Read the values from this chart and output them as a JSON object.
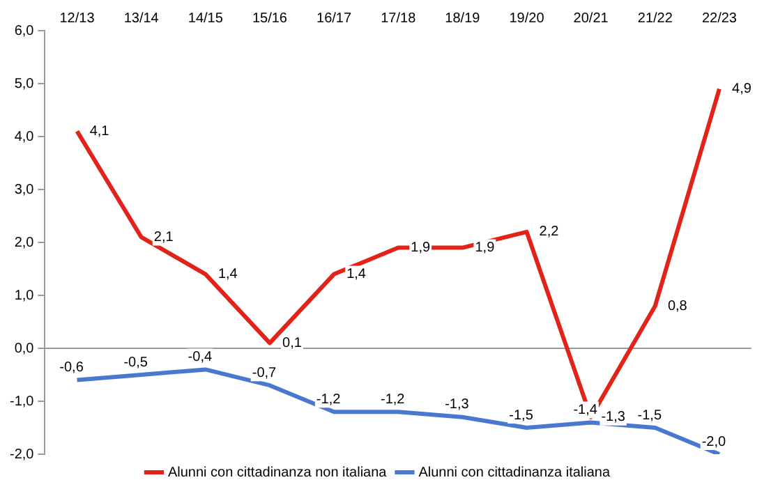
{
  "chart_data": {
    "type": "line",
    "categories": [
      "12/13",
      "13/14",
      "14/15",
      "15/16",
      "16/17",
      "17/18",
      "18/19",
      "19/20",
      "20/21",
      "21/22",
      "22/23"
    ],
    "ylim": [
      -2,
      6
    ],
    "yticks": [
      {
        "value": -2,
        "label": "-2,0"
      },
      {
        "value": -1,
        "label": "-1,0"
      },
      {
        "value": 0,
        "label": "0,0"
      },
      {
        "value": 1,
        "label": "1,0"
      },
      {
        "value": 2,
        "label": "2,0"
      },
      {
        "value": 3,
        "label": "3,0"
      },
      {
        "value": 4,
        "label": "4,0"
      },
      {
        "value": 5,
        "label": "5,0"
      },
      {
        "value": 6,
        "label": "6,0"
      }
    ],
    "grid": false,
    "ref_lines": [
      {
        "axis": "y",
        "value": 0,
        "color": "#999999"
      }
    ],
    "legend": "bottom",
    "marker": "none",
    "line_style": "solid",
    "series": [
      {
        "name": "Alunni con cittadinanza non italiana",
        "color": "#e2231a",
        "values": [
          4.1,
          2.1,
          1.4,
          0.1,
          1.4,
          1.9,
          1.9,
          2.2,
          -1.3,
          0.8,
          4.9
        ],
        "value_labels": [
          "4,1",
          "2,1",
          "1,4",
          "0,1",
          "1,4",
          "1,9",
          "1,9",
          "2,2",
          "-1,3",
          "0,8",
          "4,9"
        ]
      },
      {
        "name": "Alunni con cittadinanza italiana",
        "color": "#4a78d0",
        "values": [
          -0.6,
          -0.5,
          -0.4,
          -0.7,
          -1.2,
          -1.2,
          -1.3,
          -1.5,
          -1.4,
          -1.5,
          -2.0
        ],
        "value_labels": [
          "-0,6",
          "-0,5",
          "-0,4",
          "-0,7",
          "-1,2",
          "-1,2",
          "-1,3",
          "-1,5",
          "-1,4",
          "-1,5",
          "-2,0"
        ]
      }
    ]
  }
}
